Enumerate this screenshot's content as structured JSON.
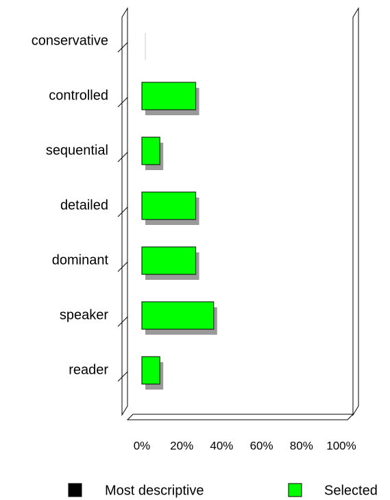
{
  "chart_data": {
    "type": "bar",
    "categories": [
      "conservative",
      "controlled",
      "sequential",
      "detailed",
      "dominant",
      "speaker",
      "reader"
    ],
    "series": [
      {
        "name": "Most descriptive",
        "color": "#000000",
        "values": [
          0,
          0,
          0,
          0,
          0,
          0,
          0
        ]
      },
      {
        "name": "Selected",
        "color": "#00ff00",
        "values": [
          0,
          27,
          9,
          27,
          27,
          36,
          9
        ]
      }
    ],
    "xlim": [
      0,
      100
    ],
    "xticks": [
      {
        "value": 0,
        "label": "0%"
      },
      {
        "value": 20,
        "label": "20%"
      },
      {
        "value": 40,
        "label": "40%"
      },
      {
        "value": 60,
        "label": "60%"
      },
      {
        "value": 80,
        "label": "80%"
      },
      {
        "value": 100,
        "label": "100%"
      }
    ],
    "stacked": true
  }
}
